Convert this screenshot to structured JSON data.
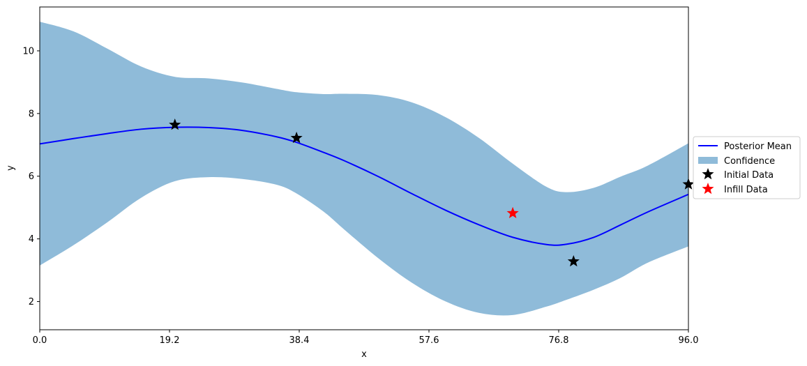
{
  "chart_data": {
    "type": "line",
    "xlabel": "x",
    "ylabel": "y",
    "xlim": [
      0,
      96
    ],
    "ylim": [
      1.1,
      11.4
    ],
    "xticks": [
      "0.0",
      "19.2",
      "38.4",
      "57.6",
      "76.8",
      "96.0"
    ],
    "yticks": [
      "2",
      "4",
      "6",
      "8",
      "10"
    ],
    "grid": false,
    "legend_position": "center-right outside",
    "colors": {
      "mean": "#0000ff",
      "confidence": "#1f77b4",
      "initial": "#000000",
      "infill": "#ff0000"
    },
    "series": [
      {
        "name": "Posterior Mean",
        "x": [
          0,
          5,
          10,
          15,
          20,
          25,
          30,
          35,
          38,
          42,
          45,
          50,
          55,
          60,
          65,
          70,
          75,
          78,
          82,
          86,
          90,
          96
        ],
        "y": [
          7.03,
          7.2,
          7.36,
          7.5,
          7.56,
          7.55,
          7.46,
          7.26,
          7.08,
          6.76,
          6.5,
          6.0,
          5.45,
          4.92,
          4.45,
          4.05,
          3.82,
          3.83,
          4.05,
          4.45,
          4.86,
          5.42
        ]
      },
      {
        "name": "Confidence",
        "x": [
          0,
          5,
          10,
          15,
          20,
          25,
          30,
          35,
          38,
          42,
          45,
          50,
          55,
          60,
          65,
          70,
          75,
          78,
          82,
          86,
          90,
          96
        ],
        "upper": [
          10.93,
          10.62,
          10.07,
          9.5,
          9.17,
          9.12,
          8.99,
          8.79,
          8.68,
          8.62,
          8.63,
          8.59,
          8.36,
          7.89,
          7.22,
          6.4,
          5.66,
          5.49,
          5.63,
          5.99,
          6.34,
          7.05
        ],
        "lower": [
          3.15,
          3.8,
          4.53,
          5.31,
          5.84,
          5.97,
          5.91,
          5.73,
          5.45,
          4.87,
          4.31,
          3.4,
          2.61,
          2.01,
          1.64,
          1.57,
          1.84,
          2.06,
          2.38,
          2.76,
          3.24,
          3.76
        ]
      },
      {
        "name": "Initial Data",
        "x": [
          20.0,
          38.0,
          79.0,
          96.0
        ],
        "y": [
          7.64,
          7.22,
          3.28,
          5.74
        ]
      },
      {
        "name": "Infill Data",
        "x": [
          70.0
        ],
        "y": [
          4.82
        ]
      }
    ]
  }
}
